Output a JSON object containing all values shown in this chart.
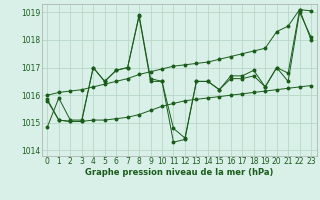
{
  "title": "Graphe pression niveau de la mer (hPa)",
  "background_color": "#d8f0e8",
  "grid_color": "#b8d8c8",
  "line_color": "#1a5c1a",
  "xlim": [
    -0.5,
    23.5
  ],
  "ylim": [
    1013.8,
    1019.3
  ],
  "yticks": [
    1014,
    1015,
    1016,
    1017,
    1018,
    1019
  ],
  "xticks": [
    0,
    1,
    2,
    3,
    4,
    5,
    6,
    7,
    8,
    9,
    10,
    11,
    12,
    13,
    14,
    15,
    16,
    17,
    18,
    19,
    20,
    21,
    22,
    23
  ],
  "series": [
    {
      "x": [
        0,
        1,
        2,
        3,
        4,
        5,
        6,
        7,
        8,
        9,
        10,
        11,
        12,
        13,
        14,
        15,
        16,
        17,
        18,
        19,
        20,
        21,
        22,
        23
      ],
      "y": [
        1014.85,
        1015.9,
        1015.1,
        1015.1,
        1017.0,
        1016.5,
        1016.9,
        1017.0,
        1018.9,
        1016.6,
        1016.5,
        1014.3,
        1014.4,
        1016.5,
        1016.5,
        1016.2,
        1016.6,
        1016.6,
        1016.7,
        1016.3,
        1017.0,
        1016.8,
        1019.1,
        1018.0
      ]
    },
    {
      "x": [
        0,
        1,
        2,
        3,
        4,
        5,
        6,
        7,
        8,
        9,
        10,
        11,
        12,
        13,
        14,
        15,
        16,
        17,
        18,
        19,
        20,
        21,
        22,
        23
      ],
      "y": [
        1015.85,
        1015.1,
        1015.05,
        1015.05,
        1015.1,
        1015.1,
        1015.15,
        1015.2,
        1015.3,
        1015.45,
        1015.6,
        1015.7,
        1015.8,
        1015.85,
        1015.9,
        1015.95,
        1016.0,
        1016.05,
        1016.1,
        1016.15,
        1016.2,
        1016.25,
        1016.3,
        1016.35
      ]
    },
    {
      "x": [
        0,
        1,
        2,
        3,
        4,
        5,
        6,
        7,
        8,
        9,
        10,
        11,
        12,
        13,
        14,
        15,
        16,
        17,
        18,
        19,
        20,
        21,
        22,
        23
      ],
      "y": [
        1016.0,
        1016.1,
        1016.15,
        1016.2,
        1016.3,
        1016.4,
        1016.5,
        1016.6,
        1016.75,
        1016.85,
        1016.95,
        1017.05,
        1017.1,
        1017.15,
        1017.2,
        1017.3,
        1017.4,
        1017.5,
        1017.6,
        1017.7,
        1018.3,
        1018.5,
        1019.1,
        1019.05
      ]
    },
    {
      "x": [
        0,
        1,
        2,
        3,
        4,
        5,
        6,
        7,
        8,
        9,
        10,
        11,
        12,
        13,
        14,
        15,
        16,
        17,
        18,
        19,
        20,
        21,
        22,
        23
      ],
      "y": [
        1015.8,
        1015.1,
        1015.05,
        1015.05,
        1017.0,
        1016.5,
        1016.9,
        1017.0,
        1018.85,
        1016.5,
        1016.5,
        1014.8,
        1014.45,
        1016.5,
        1016.5,
        1016.2,
        1016.7,
        1016.7,
        1016.9,
        1016.3,
        1017.0,
        1016.5,
        1019.0,
        1018.1
      ]
    }
  ]
}
